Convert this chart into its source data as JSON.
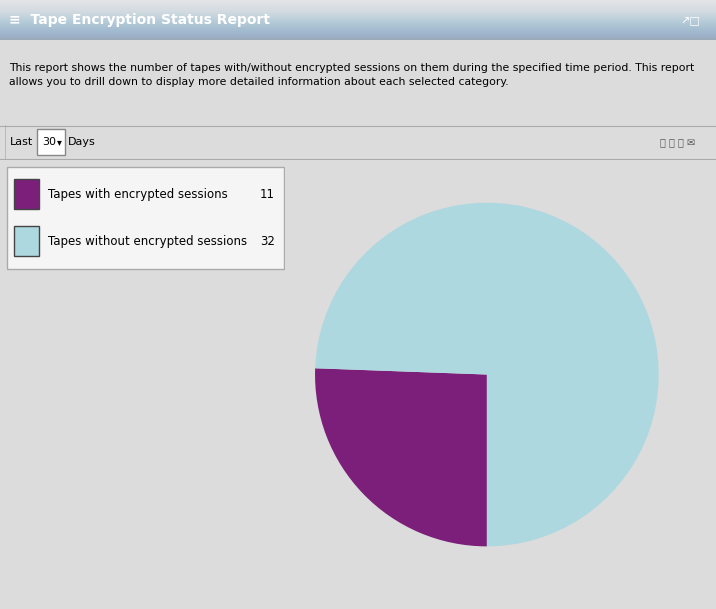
{
  "title": "Tape Encryption Status Report",
  "description": "This report shows the number of tapes with/without encrypted sessions on them during the specified time period. This report\nallows you to drill down to display more detailed information about each selected category.",
  "filter_label": "Last",
  "filter_value": "30",
  "filter_unit": "Days",
  "legend_items": [
    {
      "label": "Tapes with encrypted sessions",
      "value": 11,
      "color": "#7B1F7B"
    },
    {
      "label": "Tapes without encrypted sessions",
      "value": 32,
      "color": "#AED8DF"
    }
  ],
  "pie_colors": [
    "#7B1F7B",
    "#AED8DF"
  ],
  "pie_values": [
    11,
    32
  ],
  "background_color": "#DCDCDC",
  "header_bg": "#2B4C8C",
  "filter_bg": "#E8E8E8",
  "legend_bg": "#F5F5F5",
  "border_color": "#AAAAAA",
  "pie_startangle": 270,
  "pie_counterclock": false
}
